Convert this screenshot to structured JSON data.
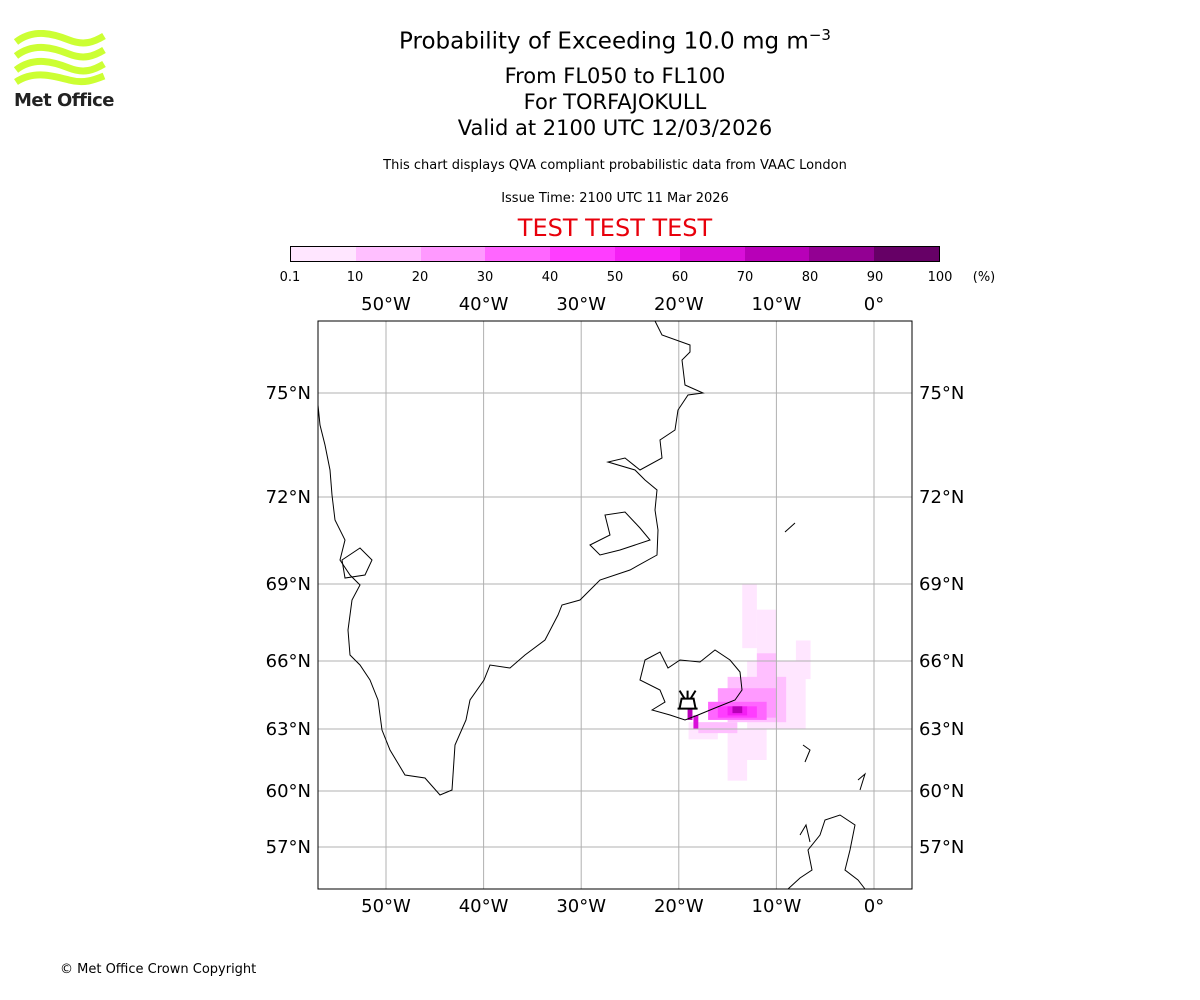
{
  "header": {
    "title_main": "Probability of Exceeding 10.0 mg m",
    "title_sup": "−3",
    "level_range": "From FL050 to FL100",
    "volcano_line": "For TORFAJOKULL",
    "valid_time": "Valid at 2100 UTC 12/03/2026",
    "subtitle": "This chart displays QVA compliant probabilistic data from VAAC London",
    "issue_time": "Issue Time: 2100 UTC 11 Mar 2026",
    "test_banner": "TEST TEST TEST",
    "test_color": "#e8000b"
  },
  "logo": {
    "text": "Met Office",
    "color": "#ccff33"
  },
  "footer": {
    "copyright": "© Met Office Crown Copyright"
  },
  "chart_data": {
    "type": "heatmap",
    "title": "Probability of Exceeding 10.0 mg m-3",
    "colorbar": {
      "ticks": [
        "0.1",
        "10",
        "20",
        "30",
        "40",
        "50",
        "60",
        "70",
        "80",
        "90",
        "100"
      ],
      "unit": "(%)",
      "colors": [
        "#ffe6ff",
        "#ffbfff",
        "#ff99ff",
        "#ff66ff",
        "#ff3dff",
        "#f41ff4",
        "#d90fd9",
        "#b800b8",
        "#930093",
        "#660066"
      ]
    },
    "lon_ticks": [
      {
        "v": -50,
        "label": "50°W"
      },
      {
        "v": -40,
        "label": "40°W"
      },
      {
        "v": -30,
        "label": "30°W"
      },
      {
        "v": -20,
        "label": "20°W"
      },
      {
        "v": -10,
        "label": "10°W"
      },
      {
        "v": 0,
        "label": "0°"
      }
    ],
    "lat_ticks": [
      {
        "v": 75,
        "label": "75°N"
      },
      {
        "v": 72,
        "label": "72°N"
      },
      {
        "v": 69,
        "label": "69°N"
      },
      {
        "v": 66,
        "label": "66°N"
      },
      {
        "v": 63,
        "label": "63°N"
      },
      {
        "v": 60,
        "label": "60°N"
      },
      {
        "v": 57,
        "label": "57°N"
      }
    ],
    "extent": {
      "lon": [
        -57,
        4
      ],
      "lat": [
        55.5,
        77.5
      ]
    },
    "grid": true,
    "volcano": {
      "name": "TORFAJOKULL",
      "lon": -19.1,
      "lat": 63.9
    },
    "probability_regions": [
      {
        "lon": [
          -13.5,
          -12
        ],
        "lat": [
          66.5,
          69
        ],
        "bin": 0
      },
      {
        "lon": [
          -12,
          -10
        ],
        "lat": [
          65,
          68
        ],
        "bin": 0
      },
      {
        "lon": [
          -8,
          -6.5
        ],
        "lat": [
          65.2,
          66.8
        ],
        "bin": 0
      },
      {
        "lon": [
          -13,
          -7
        ],
        "lat": [
          63,
          66
        ],
        "bin": 0
      },
      {
        "lon": [
          -19,
          -16
        ],
        "lat": [
          62.5,
          63.3
        ],
        "bin": 0
      },
      {
        "lon": [
          -15,
          -11
        ],
        "lat": [
          61.5,
          63
        ],
        "bin": 0
      },
      {
        "lon": [
          -15,
          -13
        ],
        "lat": [
          60.5,
          61.5
        ],
        "bin": 0
      },
      {
        "lon": [
          -10,
          -8
        ],
        "lat": [
          63.2,
          65
        ],
        "bin": 0
      },
      {
        "lon": [
          -15,
          -9
        ],
        "lat": [
          63.3,
          65.3
        ],
        "bin": 1
      },
      {
        "lon": [
          -12,
          -10
        ],
        "lat": [
          65,
          66.3
        ],
        "bin": 1
      },
      {
        "lon": [
          -18,
          -14
        ],
        "lat": [
          62.8,
          63.3
        ],
        "bin": 1
      },
      {
        "lon": [
          -16,
          -10
        ],
        "lat": [
          63.5,
          64.8
        ],
        "bin": 2
      },
      {
        "lon": [
          -17,
          -11
        ],
        "lat": [
          63.4,
          64.2
        ],
        "bin": 3
      },
      {
        "lon": [
          -16,
          -12
        ],
        "lat": [
          63.5,
          64.0
        ],
        "bin": 4
      },
      {
        "lon": [
          -15,
          -13
        ],
        "lat": [
          63.6,
          64.0
        ],
        "bin": 5
      },
      {
        "lon": [
          -18.5,
          -18
        ],
        "lat": [
          63.0,
          63.6
        ],
        "bin": 6
      },
      {
        "lon": [
          -14.5,
          -13.5
        ],
        "lat": [
          63.7,
          64.0
        ],
        "bin": 7
      },
      {
        "lon": [
          -19.1,
          -18.6
        ],
        "lat": [
          63.4,
          63.9
        ],
        "bin": 7
      }
    ]
  }
}
